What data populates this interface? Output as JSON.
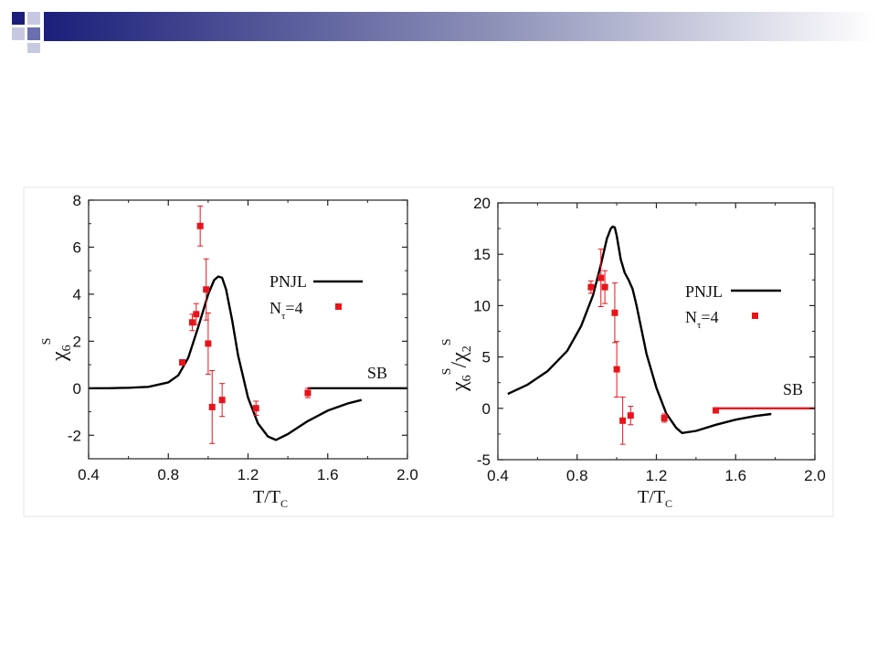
{
  "chart_data": [
    {
      "type": "scatter",
      "xlabel": "T/T",
      "xlabel_sub": "C",
      "ylabel": "χ",
      "ylabel_sub": "6",
      "ylabel_sup": "S",
      "xlim": [
        0.4,
        2.0
      ],
      "ylim": [
        -3,
        8
      ],
      "x_ticks": [
        "0.4",
        "0.8",
        "1.2",
        "1.6",
        "2.0"
      ],
      "y_ticks": [
        "-2",
        "0",
        "2",
        "4",
        "6",
        "8"
      ],
      "legend_position": "right",
      "legend": [
        {
          "label": "PNJL",
          "marker": "line",
          "color": "#000000"
        },
        {
          "label": "N",
          "label_sub": "τ",
          "label_tail": "=4",
          "marker": "square",
          "color": "#e8141c"
        }
      ],
      "annotations": [
        {
          "text": "SB"
        }
      ],
      "series": [
        {
          "name": "PNJL",
          "kind": "line",
          "color": "#000000",
          "x": [
            0.4,
            0.5,
            0.6,
            0.7,
            0.8,
            0.85,
            0.9,
            0.95,
            1.0,
            1.03,
            1.05,
            1.07,
            1.09,
            1.12,
            1.15,
            1.2,
            1.25,
            1.3,
            1.34,
            1.4,
            1.5,
            1.6,
            1.7,
            1.77
          ],
          "y": [
            0.0,
            0.0,
            0.02,
            0.06,
            0.25,
            0.55,
            1.3,
            2.6,
            4.0,
            4.6,
            4.75,
            4.7,
            4.2,
            2.9,
            1.4,
            -0.4,
            -1.5,
            -2.05,
            -2.2,
            -1.95,
            -1.4,
            -0.95,
            -0.65,
            -0.5
          ]
        },
        {
          "name": "N_tau=4",
          "kind": "points",
          "color": "#e8141c",
          "x": [
            0.87,
            0.92,
            0.94,
            0.96,
            0.99,
            1.0,
            1.02,
            1.07,
            1.24,
            1.5
          ],
          "y": [
            1.1,
            2.8,
            3.15,
            6.9,
            4.2,
            1.9,
            -0.8,
            -0.5,
            -0.85,
            -0.2
          ],
          "err": [
            0.05,
            0.35,
            0.45,
            0.85,
            1.3,
            1.3,
            1.55,
            0.7,
            0.3,
            0.2
          ]
        },
        {
          "name": "SB",
          "kind": "line",
          "color": "#000000",
          "x": [
            1.5,
            2.0
          ],
          "y": [
            0.0,
            0.0
          ]
        }
      ]
    },
    {
      "type": "scatter",
      "xlabel": "T/T",
      "xlabel_sub": "C",
      "ylabel_parts": [
        "χ",
        "6",
        "S",
        "/χ",
        "2",
        "S"
      ],
      "xlim": [
        0.4,
        2.0
      ],
      "ylim": [
        -5,
        20
      ],
      "x_ticks": [
        "0.4",
        "0.8",
        "1.2",
        "1.6",
        "2.0"
      ],
      "y_ticks": [
        "-5",
        "0",
        "5",
        "10",
        "15",
        "20"
      ],
      "legend_position": "right",
      "legend": [
        {
          "label": "PNJL",
          "marker": "line",
          "color": "#000000"
        },
        {
          "label": "N",
          "label_sub": "τ",
          "label_tail": "=4",
          "marker": "square",
          "color": "#e8141c"
        }
      ],
      "annotations": [
        {
          "text": "SB"
        }
      ],
      "series": [
        {
          "name": "PNJL",
          "kind": "line",
          "color": "#000000",
          "x": [
            0.45,
            0.55,
            0.65,
            0.75,
            0.82,
            0.88,
            0.92,
            0.95,
            0.97,
            0.98,
            0.99,
            1.0,
            1.02,
            1.04,
            1.06,
            1.08,
            1.1,
            1.15,
            1.2,
            1.25,
            1.3,
            1.33,
            1.4,
            1.5,
            1.6,
            1.7,
            1.78
          ],
          "y": [
            1.4,
            2.3,
            3.6,
            5.6,
            8.0,
            11.0,
            14.0,
            16.5,
            17.5,
            17.7,
            17.6,
            16.8,
            14.5,
            13.2,
            12.5,
            11.6,
            10.0,
            5.3,
            2.0,
            -0.5,
            -1.9,
            -2.4,
            -2.2,
            -1.6,
            -1.1,
            -0.75,
            -0.55
          ]
        },
        {
          "name": "N_tau=4",
          "kind": "points",
          "color": "#e8141c",
          "x": [
            0.87,
            0.92,
            0.94,
            0.99,
            1.0,
            1.03,
            1.07,
            1.24,
            1.5
          ],
          "y": [
            11.8,
            12.7,
            11.8,
            9.3,
            3.8,
            -1.2,
            -0.7,
            -0.95,
            -0.2
          ],
          "err": [
            0.6,
            2.8,
            1.6,
            2.9,
            2.7,
            2.3,
            0.9,
            0.4,
            0.2
          ]
        },
        {
          "name": "SB",
          "kind": "line",
          "color": "#e8141c",
          "x": [
            1.5,
            2.0
          ],
          "y": [
            0.0,
            0.0
          ]
        }
      ]
    }
  ]
}
